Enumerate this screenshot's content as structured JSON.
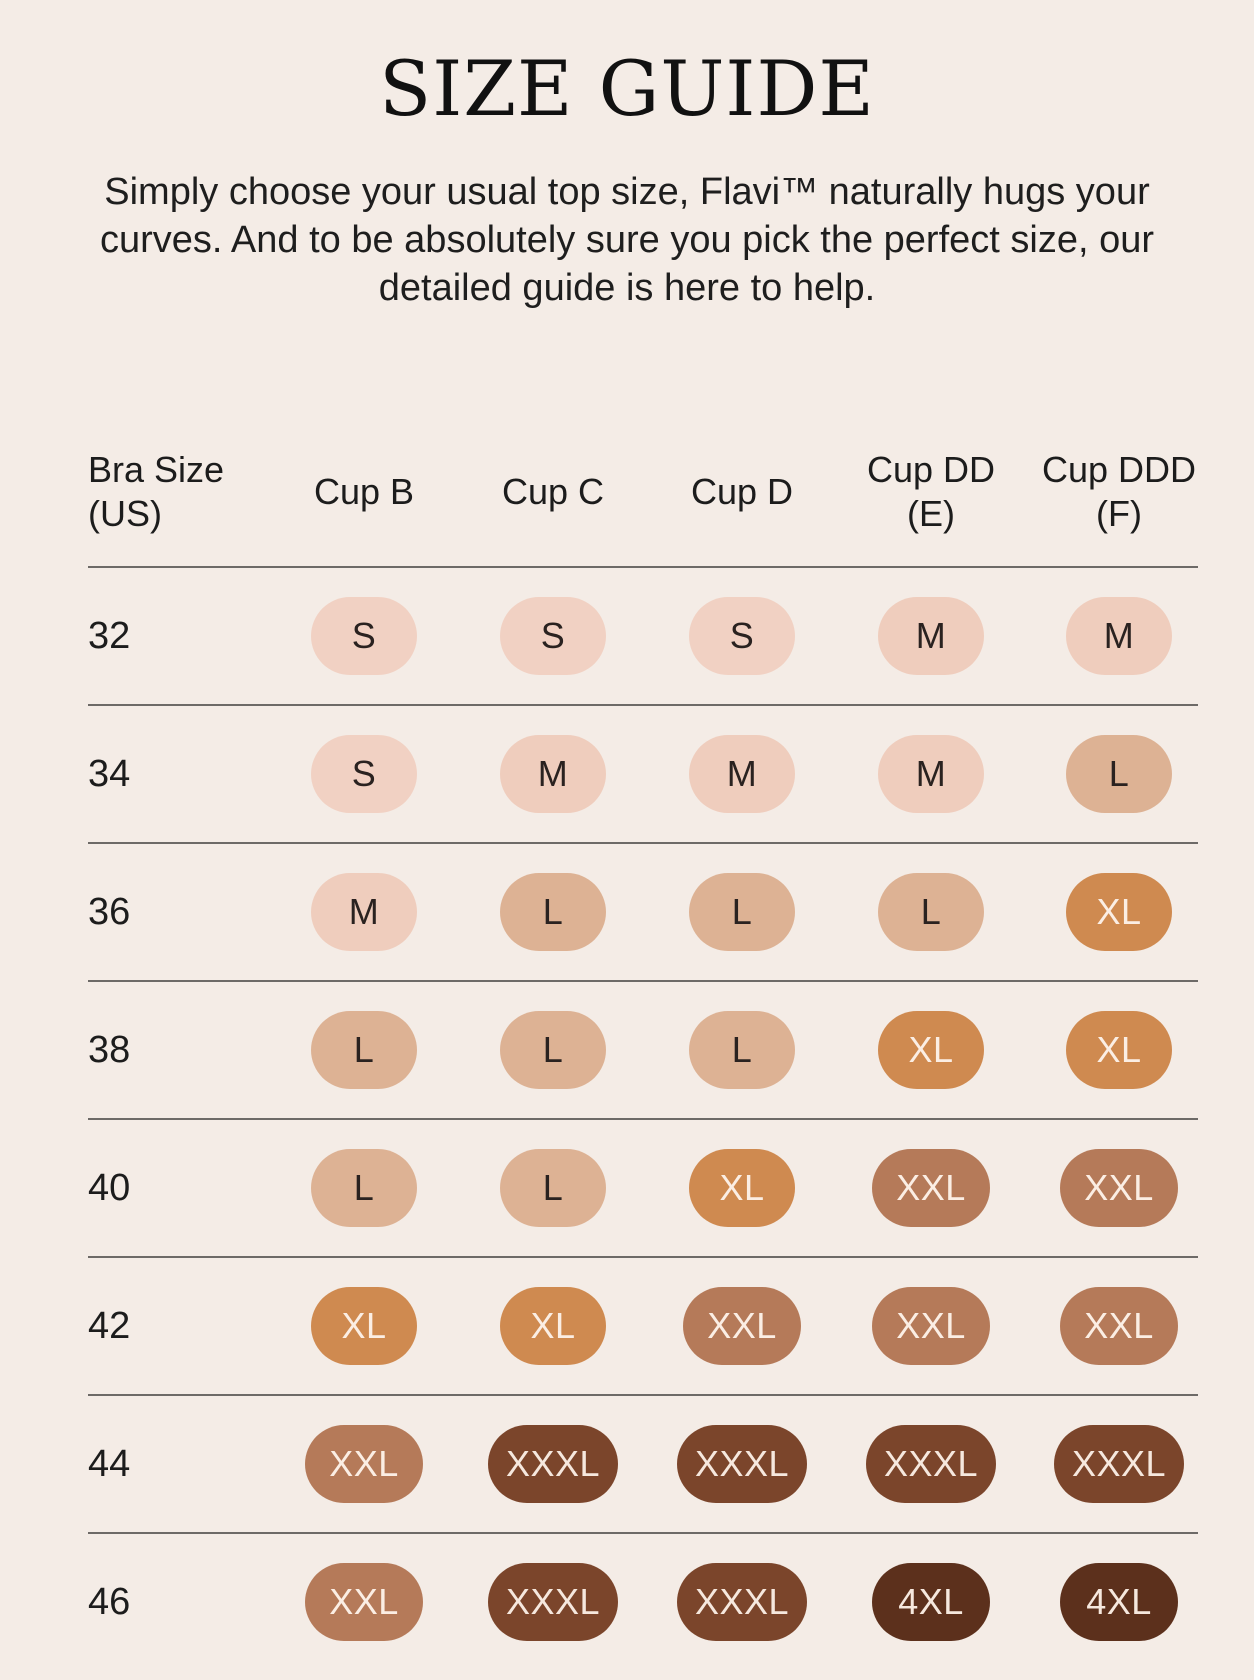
{
  "title": "SIZE GUIDE",
  "intro": "Simply choose your usual top size, Flavi™ naturally hugs your curves. And to be absolutely sure you pick the perfect size, our detailed guide is here to help.",
  "table": {
    "headers": [
      "Bra Size\n(US)",
      "Cup B",
      "Cup C",
      "Cup D",
      "Cup DD\n(E)",
      "Cup DDD\n(F)"
    ],
    "rows": [
      {
        "band": "32",
        "sizes": [
          "S",
          "S",
          "S",
          "M",
          "M"
        ]
      },
      {
        "band": "34",
        "sizes": [
          "S",
          "M",
          "M",
          "M",
          "L"
        ]
      },
      {
        "band": "36",
        "sizes": [
          "M",
          "L",
          "L",
          "L",
          "XL"
        ]
      },
      {
        "band": "38",
        "sizes": [
          "L",
          "L",
          "L",
          "XL",
          "XL"
        ]
      },
      {
        "band": "40",
        "sizes": [
          "L",
          "L",
          "XL",
          "XXL",
          "XXL"
        ]
      },
      {
        "band": "42",
        "sizes": [
          "XL",
          "XL",
          "XXL",
          "XXL",
          "XXL"
        ]
      },
      {
        "band": "44",
        "sizes": [
          "XXL",
          "XXXL",
          "XXXL",
          "XXXL",
          "XXXL"
        ]
      },
      {
        "band": "46",
        "sizes": [
          "XXL",
          "XXXL",
          "XXXL",
          "4XL",
          "4XL"
        ]
      }
    ]
  },
  "size_colors": {
    "S": "#f1d1c3",
    "M": "#efcdbd",
    "L": "#ddb294",
    "XL": "#cf8a50",
    "XXL": "#b57a59",
    "XXXL": "#7b452b",
    "4XL": "#5c301c"
  },
  "size_text_colors": {
    "S": "#2a2220",
    "M": "#2a2220",
    "L": "#2a2220",
    "XL": "#fbeee4",
    "XXL": "#fbeee4",
    "XXXL": "#f6e8de",
    "4XL": "#f6e8de"
  }
}
